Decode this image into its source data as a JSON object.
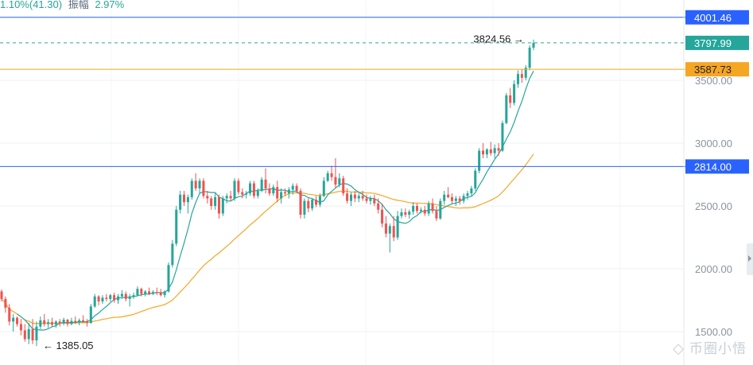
{
  "header": {
    "change_text": "1.10%(41.30)",
    "amplitude_label": "振幅",
    "amplitude_value": "2.97%"
  },
  "price_axis": {
    "ticks": [
      "3500.00",
      "3000.00",
      "2500.00",
      "2000.00",
      "1500.00"
    ]
  },
  "price_tags": [
    {
      "id": "tag-4001",
      "label": "4001.46",
      "value": 4001.46,
      "style": "blue-line"
    },
    {
      "id": "tag-3797",
      "label": "3797.99",
      "value": 3797.99,
      "style": "current-price"
    },
    {
      "id": "tag-3587",
      "label": "3587.73",
      "value": 3587.73,
      "style": "ma-orange"
    },
    {
      "id": "tag-2814",
      "label": "2814.00",
      "value": 2814.0,
      "style": "blue-line"
    }
  ],
  "annotations": {
    "high": {
      "label": "3824.56",
      "value": 3824.56
    },
    "low": {
      "label": "1385.05",
      "value": 1385.05
    }
  },
  "watermark": "币圈小悟",
  "colors": {
    "up": "#26a69a",
    "down": "#ef5350",
    "ma_fast": "#26a69a",
    "ma_slow": "#f5a623",
    "hline_blue": "#2962ff",
    "hline_orange": "#f5a623",
    "current_dashed": "#26a69a"
  },
  "chart_data": {
    "type": "candlestick",
    "ylim": [
      1300,
      4150
    ],
    "grid": true,
    "candles": [
      [
        1820,
        1835,
        1740,
        1760
      ],
      [
        1760,
        1780,
        1650,
        1690
      ],
      [
        1690,
        1720,
        1550,
        1580
      ],
      [
        1580,
        1640,
        1500,
        1610
      ],
      [
        1610,
        1620,
        1540,
        1560
      ],
      [
        1560,
        1600,
        1470,
        1510
      ],
      [
        1510,
        1560,
        1420,
        1440
      ],
      [
        1440,
        1570,
        1400,
        1520
      ],
      [
        1520,
        1600,
        1400,
        1430
      ],
      [
        1430,
        1580,
        1385,
        1540
      ],
      [
        1540,
        1620,
        1520,
        1590
      ],
      [
        1590,
        1640,
        1540,
        1560
      ],
      [
        1560,
        1600,
        1530,
        1575
      ],
      [
        1575,
        1610,
        1540,
        1555
      ],
      [
        1555,
        1590,
        1530,
        1580
      ],
      [
        1580,
        1600,
        1540,
        1565
      ],
      [
        1565,
        1610,
        1550,
        1595
      ],
      [
        1595,
        1600,
        1540,
        1560
      ],
      [
        1560,
        1610,
        1550,
        1585
      ],
      [
        1585,
        1620,
        1560,
        1575
      ],
      [
        1575,
        1605,
        1550,
        1590
      ],
      [
        1590,
        1630,
        1570,
        1580
      ],
      [
        1580,
        1600,
        1540,
        1570
      ],
      [
        1570,
        1720,
        1560,
        1700
      ],
      [
        1700,
        1800,
        1690,
        1780
      ],
      [
        1780,
        1790,
        1710,
        1740
      ],
      [
        1740,
        1790,
        1720,
        1770
      ],
      [
        1770,
        1800,
        1740,
        1760
      ],
      [
        1760,
        1800,
        1740,
        1790
      ],
      [
        1790,
        1810,
        1730,
        1750
      ],
      [
        1750,
        1800,
        1720,
        1780
      ],
      [
        1780,
        1830,
        1760,
        1800
      ],
      [
        1800,
        1820,
        1740,
        1760
      ],
      [
        1760,
        1800,
        1700,
        1780
      ],
      [
        1780,
        1810,
        1760,
        1790
      ],
      [
        1790,
        1860,
        1780,
        1840
      ],
      [
        1840,
        1850,
        1780,
        1800
      ],
      [
        1800,
        1830,
        1780,
        1820
      ],
      [
        1820,
        1850,
        1790,
        1800
      ],
      [
        1800,
        1830,
        1790,
        1815
      ],
      [
        1815,
        1850,
        1790,
        1810
      ],
      [
        1810,
        1840,
        1780,
        1790
      ],
      [
        1790,
        1830,
        1770,
        1820
      ],
      [
        1820,
        2050,
        1810,
        2030
      ],
      [
        2030,
        2230,
        2010,
        2200
      ],
      [
        2200,
        2500,
        2180,
        2470
      ],
      [
        2470,
        2620,
        2440,
        2590
      ],
      [
        2590,
        2620,
        2500,
        2530
      ],
      [
        2530,
        2590,
        2440,
        2570
      ],
      [
        2570,
        2720,
        2550,
        2700
      ],
      [
        2700,
        2760,
        2620,
        2640
      ],
      [
        2640,
        2720,
        2600,
        2700
      ],
      [
        2700,
        2720,
        2560,
        2580
      ],
      [
        2580,
        2620,
        2520,
        2560
      ],
      [
        2560,
        2580,
        2470,
        2500
      ],
      [
        2500,
        2600,
        2470,
        2570
      ],
      [
        2570,
        2590,
        2400,
        2440
      ],
      [
        2440,
        2580,
        2420,
        2560
      ],
      [
        2560,
        2600,
        2520,
        2580
      ],
      [
        2580,
        2620,
        2540,
        2560
      ],
      [
        2560,
        2720,
        2540,
        2700
      ],
      [
        2700,
        2720,
        2590,
        2610
      ],
      [
        2610,
        2640,
        2560,
        2590
      ],
      [
        2590,
        2620,
        2560,
        2600
      ],
      [
        2600,
        2700,
        2580,
        2680
      ],
      [
        2680,
        2700,
        2560,
        2580
      ],
      [
        2580,
        2640,
        2560,
        2620
      ],
      [
        2620,
        2730,
        2610,
        2710
      ],
      [
        2710,
        2800,
        2600,
        2640
      ],
      [
        2640,
        2680,
        2580,
        2600
      ],
      [
        2600,
        2670,
        2580,
        2650
      ],
      [
        2650,
        2700,
        2530,
        2560
      ],
      [
        2560,
        2640,
        2520,
        2610
      ],
      [
        2610,
        2640,
        2580,
        2600
      ],
      [
        2600,
        2650,
        2560,
        2630
      ],
      [
        2630,
        2680,
        2590,
        2660
      ],
      [
        2660,
        2680,
        2600,
        2620
      ],
      [
        2620,
        2640,
        2400,
        2430
      ],
      [
        2430,
        2560,
        2400,
        2540
      ],
      [
        2540,
        2560,
        2450,
        2480
      ],
      [
        2480,
        2560,
        2460,
        2550
      ],
      [
        2550,
        2580,
        2490,
        2510
      ],
      [
        2510,
        2600,
        2490,
        2580
      ],
      [
        2580,
        2730,
        2570,
        2700
      ],
      [
        2700,
        2780,
        2690,
        2760
      ],
      [
        2760,
        2820,
        2700,
        2730
      ],
      [
        2730,
        2880,
        2640,
        2670
      ],
      [
        2670,
        2760,
        2650,
        2720
      ],
      [
        2720,
        2740,
        2580,
        2600
      ],
      [
        2600,
        2640,
        2520,
        2540
      ],
      [
        2540,
        2610,
        2500,
        2590
      ],
      [
        2590,
        2620,
        2530,
        2560
      ],
      [
        2560,
        2600,
        2530,
        2580
      ],
      [
        2580,
        2620,
        2540,
        2560
      ],
      [
        2560,
        2590,
        2520,
        2540
      ],
      [
        2540,
        2580,
        2510,
        2560
      ],
      [
        2560,
        2590,
        2500,
        2520
      ],
      [
        2520,
        2560,
        2440,
        2470
      ],
      [
        2470,
        2520,
        2330,
        2360
      ],
      [
        2360,
        2420,
        2250,
        2280
      ],
      [
        2280,
        2360,
        2130,
        2340
      ],
      [
        2340,
        2420,
        2220,
        2250
      ],
      [
        2250,
        2460,
        2230,
        2420
      ],
      [
        2420,
        2480,
        2400,
        2450
      ],
      [
        2450,
        2480,
        2410,
        2430
      ],
      [
        2430,
        2470,
        2400,
        2455
      ],
      [
        2455,
        2530,
        2430,
        2500
      ],
      [
        2500,
        2520,
        2440,
        2460
      ],
      [
        2460,
        2490,
        2440,
        2470
      ],
      [
        2470,
        2500,
        2420,
        2440
      ],
      [
        2440,
        2540,
        2420,
        2520
      ],
      [
        2520,
        2560,
        2440,
        2460
      ],
      [
        2460,
        2500,
        2380,
        2400
      ],
      [
        2400,
        2560,
        2390,
        2540
      ],
      [
        2540,
        2620,
        2510,
        2590
      ],
      [
        2590,
        2650,
        2560,
        2570
      ],
      [
        2570,
        2600,
        2520,
        2540
      ],
      [
        2540,
        2580,
        2500,
        2560
      ],
      [
        2560,
        2580,
        2510,
        2540
      ],
      [
        2540,
        2600,
        2520,
        2580
      ],
      [
        2580,
        2620,
        2550,
        2600
      ],
      [
        2600,
        2660,
        2580,
        2640
      ],
      [
        2640,
        2800,
        2620,
        2780
      ],
      [
        2780,
        2960,
        2760,
        2940
      ],
      [
        2940,
        3000,
        2880,
        2910
      ],
      [
        2910,
        2960,
        2880,
        2950
      ],
      [
        2950,
        3010,
        2900,
        2920
      ],
      [
        2920,
        2990,
        2880,
        2960
      ],
      [
        2960,
        3000,
        2900,
        2940
      ],
      [
        2940,
        3180,
        2930,
        3160
      ],
      [
        3160,
        3400,
        3150,
        3380
      ],
      [
        3380,
        3440,
        3280,
        3320
      ],
      [
        3320,
        3500,
        3300,
        3470
      ],
      [
        3470,
        3580,
        3440,
        3550
      ],
      [
        3550,
        3590,
        3480,
        3520
      ],
      [
        3520,
        3620,
        3500,
        3600
      ],
      [
        3600,
        3780,
        3580,
        3760
      ],
      [
        3760,
        3824.56,
        3740,
        3797.99
      ]
    ]
  }
}
